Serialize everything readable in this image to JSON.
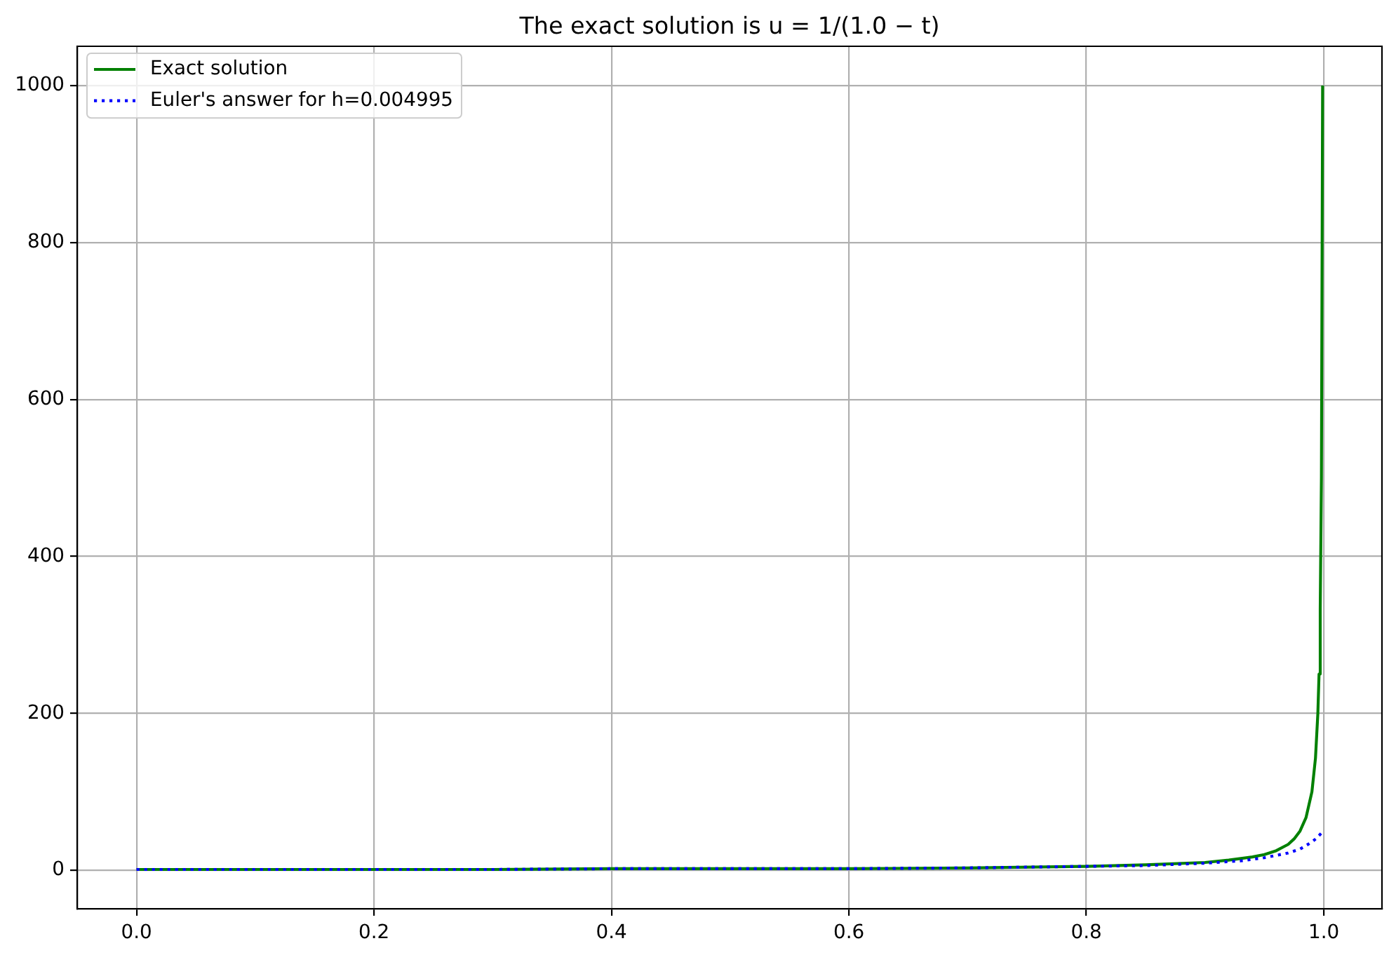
{
  "chart_data": {
    "type": "line",
    "title": "The exact solution is u = 1/(1.0 − t)",
    "xlim": [
      -0.05,
      1.049
    ],
    "ylim": [
      -49,
      1050
    ],
    "xticks": [
      {
        "value": 0,
        "label": "0.0"
      },
      0.2,
      0.4,
      0.6,
      0.8,
      {
        "value": 1,
        "label": "1.0"
      }
    ],
    "yticks": [
      0,
      200,
      400,
      600,
      800,
      1000
    ],
    "grid": true,
    "legend": "top left",
    "series": [
      {
        "name": "Exact solution",
        "color": "#008000",
        "line_style": "solid",
        "x": [
          0,
          0.1,
          0.2,
          0.3,
          0.4,
          0.5,
          0.6,
          0.7,
          0.8,
          0.85,
          0.9,
          0.92,
          0.94,
          0.95,
          0.96,
          0.97,
          0.975,
          0.98,
          0.985,
          0.99,
          0.993,
          0.995,
          0.996,
          0.997,
          0.998,
          0.999
        ],
        "values": [
          1,
          1,
          1,
          1,
          2,
          2,
          2,
          3,
          5,
          7,
          10,
          13,
          17,
          20,
          25,
          33,
          40,
          50,
          67,
          100,
          143,
          200,
          250,
          333,
          500,
          1000
        ]
      },
      {
        "name": "Euler's answer for h=0.004995",
        "color": "#0000ff",
        "line_style": "dotted",
        "x": [
          0,
          0.1,
          0.2,
          0.3,
          0.4,
          0.5,
          0.6,
          0.7,
          0.8,
          0.85,
          0.9,
          0.93,
          0.95,
          0.97,
          0.98,
          0.99,
          0.994,
          0.999
        ],
        "values": [
          1,
          1,
          1,
          1,
          2,
          2,
          2,
          3,
          5,
          6,
          9,
          12,
          16,
          22,
          27,
          36,
          41,
          49
        ]
      }
    ]
  }
}
